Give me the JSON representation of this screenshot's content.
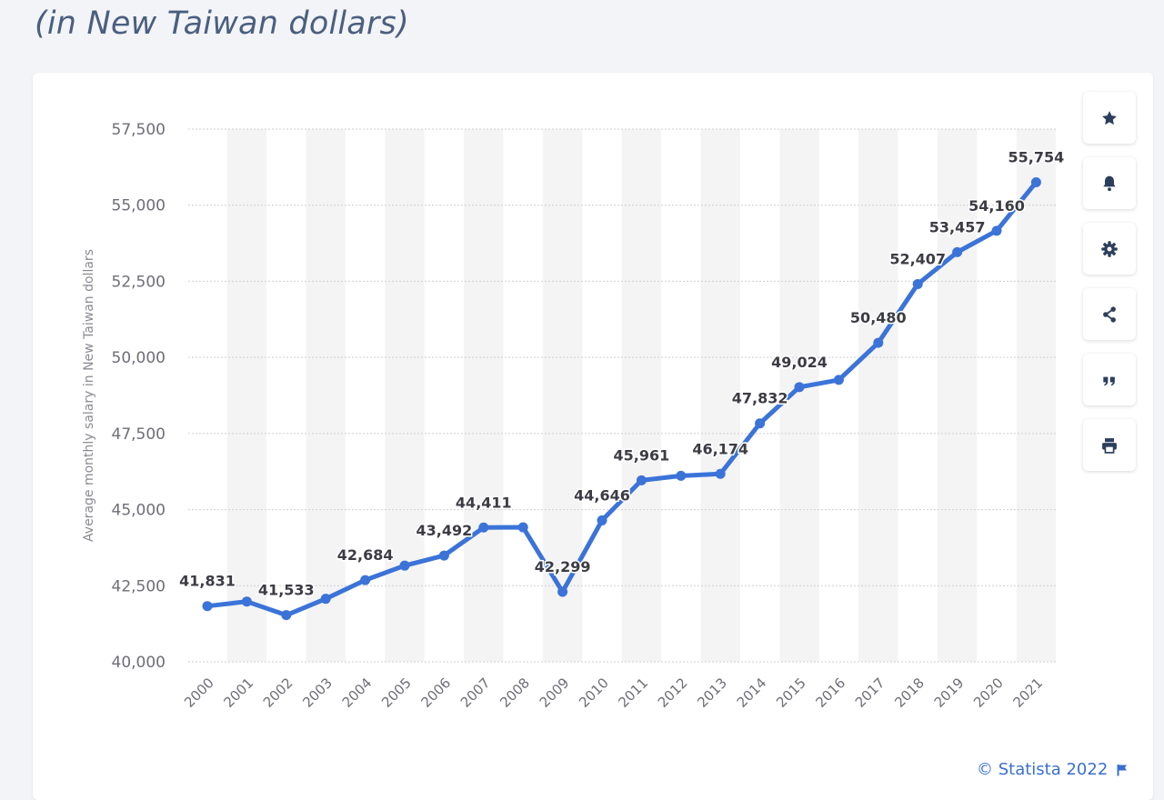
{
  "header": {
    "subtitle": "(in New Taiwan dollars)"
  },
  "chart_data": {
    "type": "line",
    "ylabel": "Average monthly salary in New Taiwan dollars",
    "categories": [
      "2000",
      "2001",
      "2002",
      "2003",
      "2004",
      "2005",
      "2006",
      "2007",
      "2008",
      "2009",
      "2010",
      "2011",
      "2012",
      "2013",
      "2014",
      "2015",
      "2016",
      "2017",
      "2018",
      "2019",
      "2020",
      "2021"
    ],
    "values": [
      41831,
      41980,
      41533,
      42070,
      42684,
      43160,
      43492,
      44411,
      44418,
      42299,
      44646,
      45961,
      46110,
      46174,
      47832,
      49024,
      49260,
      50480,
      52407,
      53457,
      54160,
      55754
    ],
    "data_labels": [
      "41,831",
      "",
      "41,533",
      "",
      "42,684",
      "",
      "43,492",
      "44,411",
      "",
      "42,299",
      "44,646",
      "45,961",
      "",
      "46,174",
      "47,832",
      "49,024",
      "",
      "50,480",
      "52,407",
      "53,457",
      "54,160",
      "55,754"
    ],
    "yticks": [
      40000,
      42500,
      45000,
      47500,
      50000,
      52500,
      55000,
      57500
    ],
    "ytick_labels": [
      "40,000",
      "42,500",
      "45,000",
      "47,500",
      "50,000",
      "52,500",
      "55,000",
      "57,500"
    ],
    "ylim": [
      40000,
      57500
    ],
    "grid": true,
    "colors": {
      "line": "#3b73d8",
      "band": "#f4f4f5",
      "grid": "#cfcfd4"
    }
  },
  "toolbar": {
    "buttons": [
      {
        "name": "favorite-button",
        "icon": "star-icon"
      },
      {
        "name": "notification-button",
        "icon": "bell-icon"
      },
      {
        "name": "settings-button",
        "icon": "gear-icon"
      },
      {
        "name": "share-button",
        "icon": "share-icon"
      },
      {
        "name": "cite-button",
        "icon": "quote-icon"
      },
      {
        "name": "print-button",
        "icon": "printer-icon"
      }
    ]
  },
  "footer": {
    "credit": "© Statista 2022",
    "flag_icon": "flag-icon"
  }
}
